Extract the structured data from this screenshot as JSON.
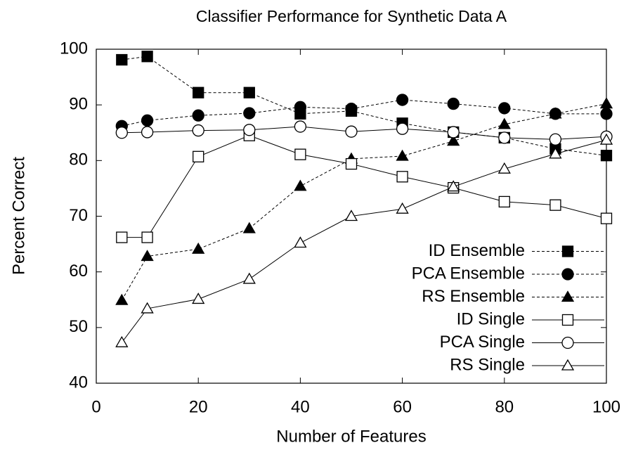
{
  "chart_data": {
    "type": "line",
    "title": "Classifier Performance for Synthetic Data A",
    "x_label": "Number of Features",
    "y_label": "Percent Correct",
    "x": [
      5,
      10,
      20,
      30,
      40,
      50,
      60,
      70,
      80,
      90,
      100
    ],
    "xlim": [
      0,
      100
    ],
    "xticks": [
      0,
      20,
      40,
      60,
      80,
      100
    ],
    "ylim": [
      40,
      100
    ],
    "yticks": [
      40,
      50,
      60,
      70,
      80,
      90,
      100
    ],
    "grid": false,
    "legend": "lower right",
    "series": [
      {
        "name": "ID Ensemble",
        "color": "#000000",
        "marker": "square",
        "filled": true,
        "dashed": true,
        "values": [
          98.1,
          98.7,
          92.2,
          92.2,
          88.4,
          88.9,
          86.7,
          85.1,
          84.1,
          82.1,
          80.9
        ]
      },
      {
        "name": "PCA Ensemble",
        "color": "#000000",
        "marker": "circle",
        "filled": true,
        "dashed": true,
        "values": [
          86.2,
          87.2,
          88.1,
          88.5,
          89.6,
          89.3,
          90.9,
          90.2,
          89.4,
          88.4,
          88.4
        ]
      },
      {
        "name": "RS Ensemble",
        "color": "#000000",
        "marker": "triangle",
        "filled": true,
        "dashed": true,
        "values": [
          54.9,
          62.8,
          64.1,
          67.8,
          75.4,
          80.3,
          80.8,
          83.5,
          86.5,
          88.4,
          90.2
        ]
      },
      {
        "name": "ID Single",
        "color": "#000000",
        "marker": "square",
        "filled": false,
        "dashed": false,
        "values": [
          66.2,
          66.2,
          80.7,
          84.5,
          81.1,
          79.4,
          77.1,
          75.1,
          72.6,
          72.0,
          69.6
        ]
      },
      {
        "name": "PCA Single",
        "color": "#000000",
        "marker": "circle",
        "filled": false,
        "dashed": false,
        "values": [
          85.0,
          85.1,
          85.4,
          85.5,
          86.1,
          85.2,
          85.7,
          85.1,
          84.1,
          83.8,
          84.3
        ]
      },
      {
        "name": "RS Single",
        "color": "#000000",
        "marker": "triangle",
        "filled": false,
        "dashed": false,
        "values": [
          47.3,
          53.4,
          55.1,
          58.7,
          65.2,
          70.0,
          71.3,
          75.3,
          78.5,
          81.2,
          83.7
        ]
      }
    ]
  }
}
